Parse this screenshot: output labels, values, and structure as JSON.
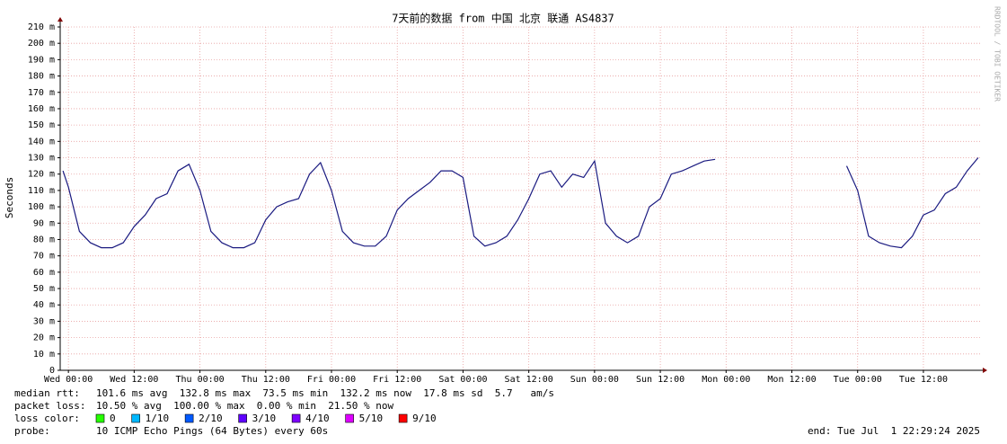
{
  "chart_data": {
    "type": "line",
    "title": "7天前的数据 from 中国 北京 联通 AS4837",
    "y_label": "Seconds",
    "watermark": "RRDTOOL / TOBI OETIKER",
    "xlim": [
      -1.5,
      166.5
    ],
    "xticks": [
      {
        "value": 0,
        "label": "Wed 00:00"
      },
      {
        "value": 12,
        "label": "Wed 12:00"
      },
      {
        "value": 24,
        "label": "Thu 00:00"
      },
      {
        "value": 36,
        "label": "Thu 12:00"
      },
      {
        "value": 48,
        "label": "Fri 00:00"
      },
      {
        "value": 60,
        "label": "Fri 12:00"
      },
      {
        "value": 72,
        "label": "Sat 00:00"
      },
      {
        "value": 84,
        "label": "Sat 12:00"
      },
      {
        "value": 96,
        "label": "Sun 00:00"
      },
      {
        "value": 108,
        "label": "Sun 12:00"
      },
      {
        "value": 120,
        "label": "Mon 00:00"
      },
      {
        "value": 132,
        "label": "Mon 12:00"
      },
      {
        "value": 144,
        "label": "Tue 00:00"
      },
      {
        "value": 156,
        "label": "Tue 12:00"
      }
    ],
    "ylim": [
      0,
      0.21
    ],
    "yticks": [
      0,
      {
        "value": 0.01,
        "label": "10 m"
      },
      {
        "value": 0.02,
        "label": "20 m"
      },
      {
        "value": 0.03,
        "label": "30 m"
      },
      {
        "value": 0.04,
        "label": "40 m"
      },
      {
        "value": 0.05,
        "label": "50 m"
      },
      {
        "value": 0.06,
        "label": "60 m"
      },
      {
        "value": 0.07,
        "label": "70 m"
      },
      {
        "value": 0.08,
        "label": "80 m"
      },
      {
        "value": 0.09,
        "label": "90 m"
      },
      {
        "value": 0.1,
        "label": "100 m"
      },
      {
        "value": 0.11,
        "label": "110 m"
      },
      {
        "value": 0.12,
        "label": "120 m"
      },
      {
        "value": 0.13,
        "label": "130 m"
      },
      {
        "value": 0.14,
        "label": "140 m"
      },
      {
        "value": 0.15,
        "label": "150 m"
      },
      {
        "value": 0.16,
        "label": "160 m"
      },
      {
        "value": 0.17,
        "label": "170 m"
      },
      {
        "value": 0.18,
        "label": "180 m"
      },
      {
        "value": 0.19,
        "label": "190 m"
      },
      {
        "value": 0.2,
        "label": "200 m"
      },
      {
        "value": 0.21,
        "label": "210 m"
      }
    ],
    "grid": true,
    "x": [
      -1,
      0,
      2,
      4,
      6,
      8,
      10,
      12,
      14,
      16,
      18,
      20,
      22,
      24,
      26,
      28,
      30,
      32,
      34,
      36,
      38,
      40,
      42,
      44,
      46,
      48,
      50,
      52,
      54,
      56,
      58,
      60,
      62,
      64,
      66,
      68,
      70,
      72,
      74,
      76,
      78,
      80,
      82,
      84,
      86,
      88,
      90,
      92,
      94,
      96,
      98,
      100,
      102,
      104,
      106,
      108,
      110,
      112,
      114,
      116,
      118,
      120,
      122,
      124,
      126,
      128,
      130,
      132,
      134,
      136,
      138,
      140,
      142,
      144,
      146,
      148,
      150,
      152,
      154,
      156,
      158,
      160,
      162,
      164,
      166
    ],
    "series": [
      {
        "color": "#1a1a80",
        "values": [
          0.122,
          0.112,
          0.085,
          0.078,
          0.075,
          0.075,
          0.078,
          0.088,
          0.095,
          0.105,
          0.108,
          0.122,
          0.126,
          0.11,
          0.085,
          0.078,
          0.075,
          0.075,
          0.078,
          0.092,
          0.1,
          0.103,
          0.105,
          0.12,
          0.127,
          0.11,
          0.085,
          0.078,
          0.076,
          0.076,
          0.082,
          0.098,
          0.105,
          0.11,
          0.115,
          0.122,
          0.122,
          0.118,
          0.082,
          0.076,
          0.078,
          0.082,
          0.092,
          0.105,
          0.12,
          0.122,
          0.112,
          0.12,
          0.118,
          0.128,
          0.09,
          0.082,
          0.078,
          0.082,
          0.1,
          0.105,
          0.12,
          0.122,
          0.125,
          0.128,
          0.129,
          null,
          null,
          null,
          null,
          null,
          null,
          null,
          null,
          null,
          null,
          null,
          0.125,
          0.11,
          0.082,
          0.078,
          0.076,
          0.075,
          0.082,
          0.095,
          0.098,
          0.108,
          0.112,
          0.122,
          0.13
        ]
      }
    ],
    "median_rtt": {
      "label": "median rtt:",
      "text": "101.6 ms avg  132.8 ms max  73.5 ms min  132.2 ms now  17.8 ms sd  5.7   am/s"
    },
    "packet_loss": {
      "label": "packet loss:",
      "text": "10.50 % avg  100.00 % max  0.00 % min  21.50 % now"
    },
    "loss_color": {
      "label": "loss color:",
      "items": [
        {
          "label": "0",
          "color": "#26ff00"
        },
        {
          "label": "1/10",
          "color": "#00b8ff"
        },
        {
          "label": "2/10",
          "color": "#0059ff"
        },
        {
          "label": "3/10",
          "color": "#5e00ff"
        },
        {
          "label": "4/10",
          "color": "#7e00ff"
        },
        {
          "label": "5/10",
          "color": "#dd00ff"
        },
        {
          "label": "9/10",
          "color": "#ff0000"
        }
      ]
    },
    "probe": {
      "label": "probe:",
      "text": "10 ICMP Echo Pings (64 Bytes) every 60s"
    },
    "end": "end: Tue Jul  1 22:29:24 2025"
  }
}
